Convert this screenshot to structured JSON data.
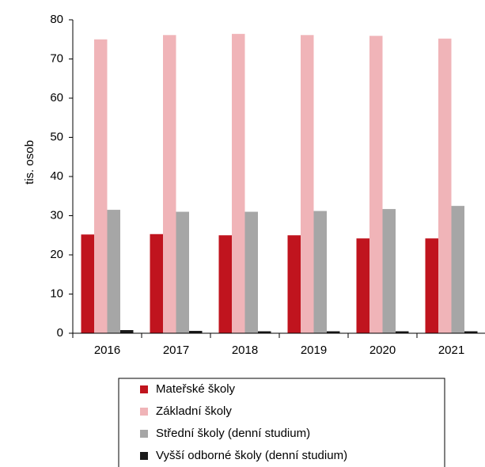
{
  "chart_data": {
    "type": "bar",
    "y_label": "tis. osob",
    "categories": [
      "2016",
      "2017",
      "2018",
      "2019",
      "2020",
      "2021"
    ],
    "series": [
      {
        "name": "Mateřské školy",
        "color": "#c0141e",
        "values": [
          25.2,
          25.3,
          25.0,
          25.0,
          24.2,
          24.2
        ]
      },
      {
        "name": "Základní školy",
        "color": "#f0b4b8",
        "values": [
          75.0,
          76.1,
          76.4,
          76.1,
          75.9,
          75.2
        ]
      },
      {
        "name": "Střední školy (denní studium)",
        "color": "#a6a6a6",
        "values": [
          31.5,
          31.0,
          31.0,
          31.2,
          31.7,
          32.5
        ]
      },
      {
        "name": "Vyšší odborné školy (denní studium)",
        "color": "#1a1a1a",
        "values": [
          0.8,
          0.6,
          0.5,
          0.5,
          0.5,
          0.5
        ]
      }
    ],
    "ylim": [
      0,
      80
    ],
    "yticks": [
      0,
      10,
      20,
      30,
      40,
      50,
      60,
      70,
      80
    ],
    "grid": false,
    "legend": "bottom"
  }
}
